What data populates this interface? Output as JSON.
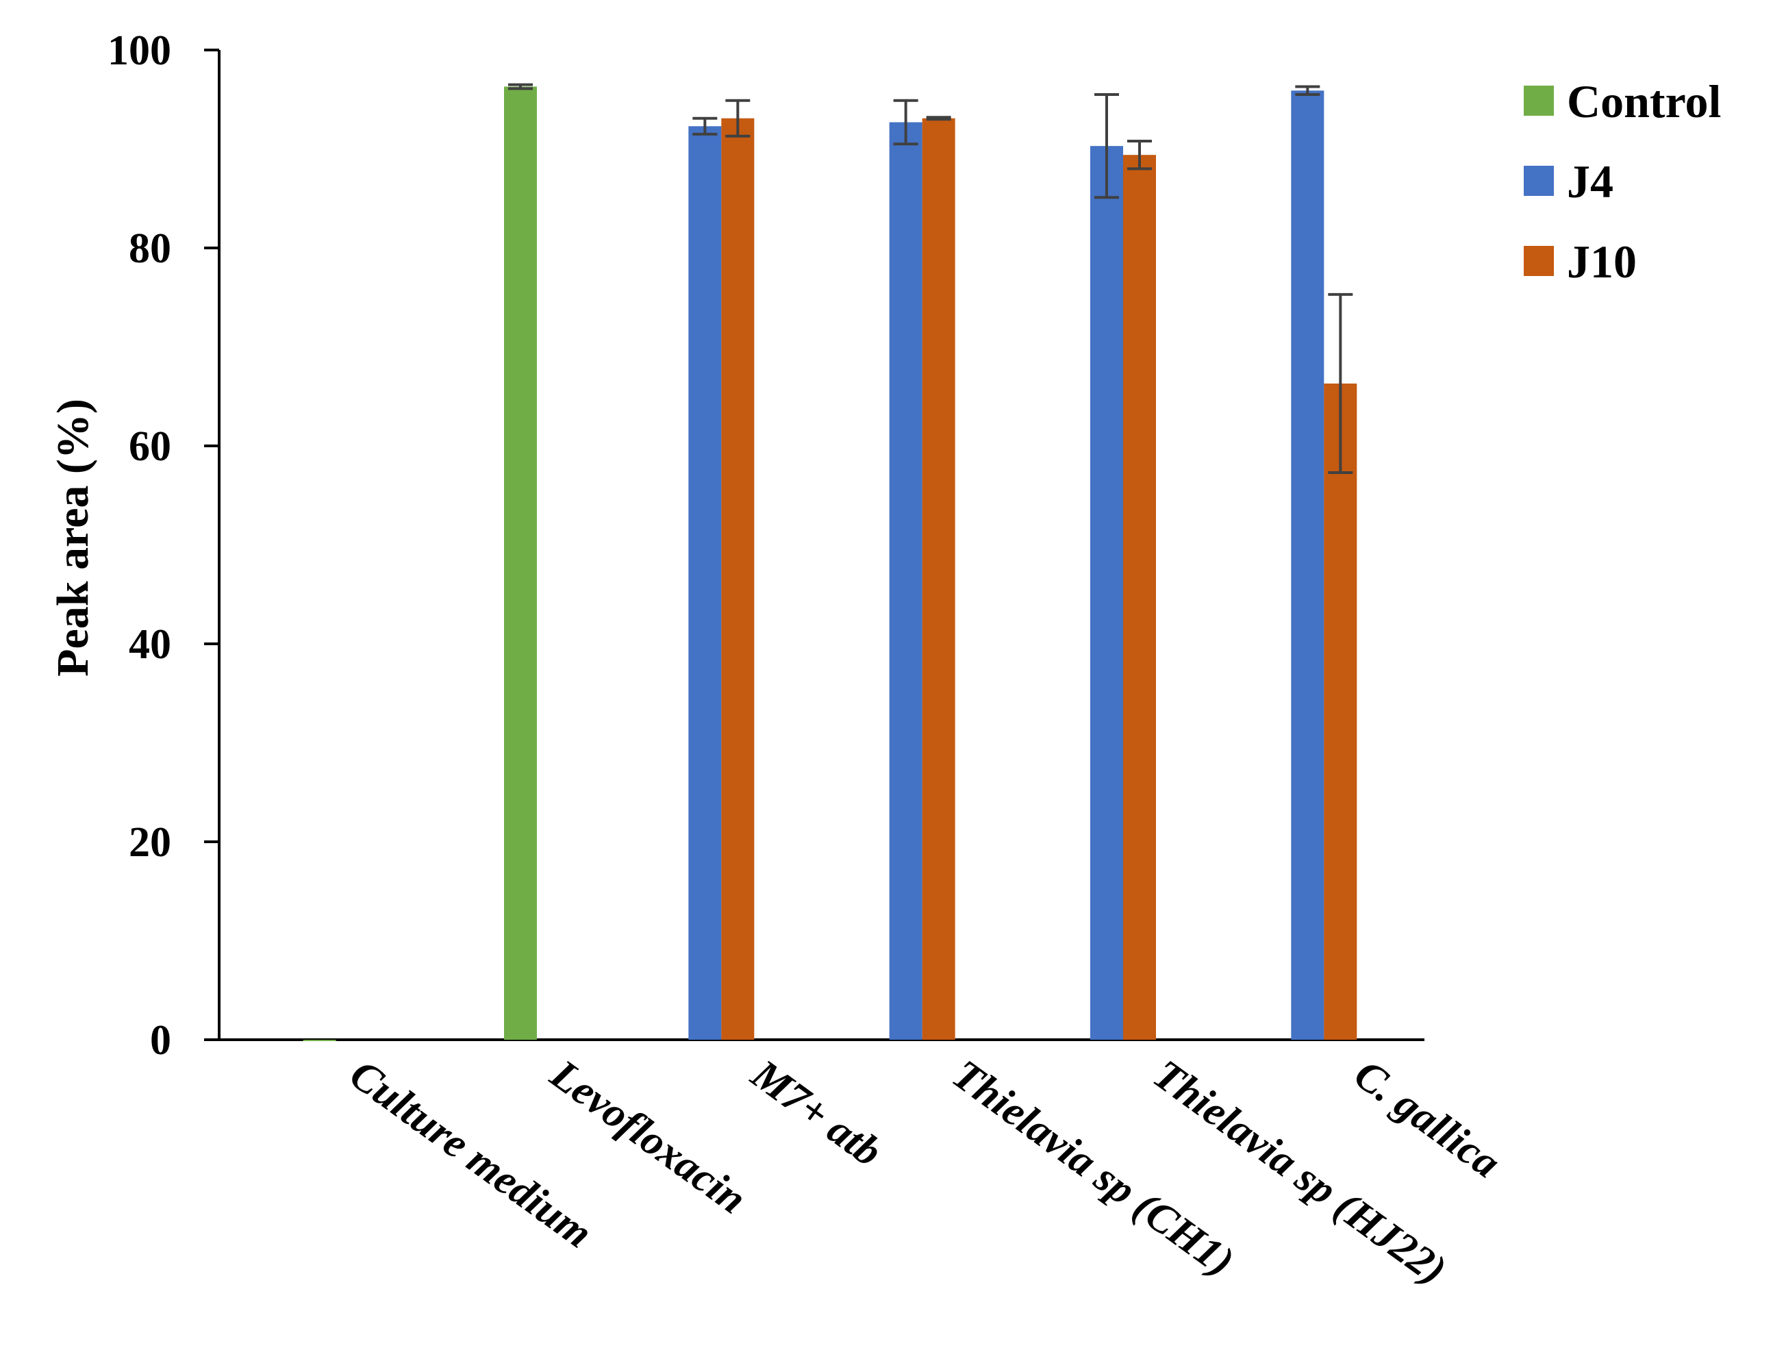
{
  "chart_data": {
    "type": "bar",
    "title": "",
    "xlabel": "",
    "ylabel": "Peak area (%)",
    "ylim": [
      0,
      100
    ],
    "yticks": [
      0,
      20,
      40,
      60,
      80,
      100
    ],
    "categories": [
      "Culture medium",
      "Levofloxacin",
      "M7+ atb",
      "Thielavia sp (CH1)",
      "Thielavia sp (HJ22)",
      "C. gallica"
    ],
    "series": [
      {
        "name": "Control",
        "color": "#70ad47",
        "values": [
          0,
          96.3,
          null,
          null,
          null,
          null
        ],
        "errors": [
          0,
          0.2,
          null,
          null,
          null,
          null
        ]
      },
      {
        "name": "J4",
        "color": "#4472c4",
        "values": [
          null,
          null,
          92.3,
          92.7,
          90.3,
          95.9
        ],
        "errors": [
          null,
          null,
          0.8,
          2.2,
          5.2,
          0.4
        ]
      },
      {
        "name": "J10",
        "color": "#c55a11",
        "values": [
          null,
          null,
          93.1,
          93.1,
          89.4,
          66.3
        ],
        "errors": [
          null,
          null,
          1.8,
          0.1,
          1.4,
          9.0
        ]
      }
    ],
    "legend_position": "top-right",
    "grid": false
  }
}
